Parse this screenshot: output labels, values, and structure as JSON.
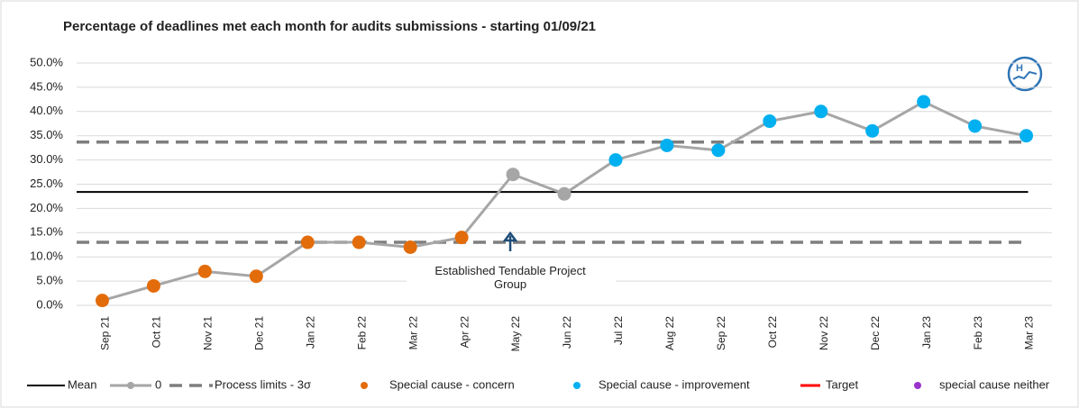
{
  "chart_data": {
    "type": "line",
    "title": "Percentage of deadlines met each month for audits submissions - starting 01/09/21",
    "categories": [
      "Sep 21",
      "Oct 21",
      "Nov 21",
      "Dec 21",
      "Jan 22",
      "Feb 22",
      "Mar 22",
      "Apr 22",
      "May 22",
      "Jun 22",
      "Jul 22",
      "Aug 22",
      "Sep 22",
      "Oct 22",
      "Nov 22",
      "Dec 22",
      "Jan 23",
      "Feb 23",
      "Mar 23"
    ],
    "series": [
      {
        "name": "0",
        "color": "#a6a6a6",
        "values": [
          1,
          4,
          7,
          6,
          13,
          13,
          12,
          14,
          27,
          23,
          30,
          33,
          32,
          38,
          40,
          36,
          42,
          37,
          35
        ]
      }
    ],
    "point_colors": [
      "#e36c0a",
      "#e36c0a",
      "#e36c0a",
      "#e36c0a",
      "#e36c0a",
      "#e36c0a",
      "#e36c0a",
      "#e36c0a",
      "#a6a6a6",
      "#a6a6a6",
      "#00b0f0",
      "#00b0f0",
      "#00b0f0",
      "#00b0f0",
      "#00b0f0",
      "#00b0f0",
      "#00b0f0",
      "#00b0f0",
      "#00b0f0"
    ],
    "mean": {
      "name": "Mean",
      "color": "#000000",
      "value": 23.4
    },
    "process_limits": {
      "name": "Process limits - 3σ",
      "color": "#7f7f7f",
      "values": [
        13,
        33.7
      ]
    },
    "special_causes": [
      {
        "name": "Special cause - concern",
        "color": "#e36c0a"
      },
      {
        "name": "Special cause  - improvement",
        "color": "#00b0f0"
      },
      {
        "name": "special cause neither",
        "color": "#9933cc"
      }
    ],
    "target": {
      "name": "Target",
      "color": "#ff0000"
    },
    "annotation": "Established Tendable Project Group",
    "ylim": [
      0,
      50
    ],
    "yticks": [
      {
        "value": 0,
        "label": "0.0%"
      },
      {
        "value": 5,
        "label": "5.0%"
      },
      {
        "value": 10,
        "label": "10.0%"
      },
      {
        "value": 15,
        "label": "15.0%"
      },
      {
        "value": 20,
        "label": "20.0%"
      },
      {
        "value": 25,
        "label": "25.0%"
      },
      {
        "value": 30,
        "label": "30.0%"
      },
      {
        "value": 35,
        "label": "35.0%"
      },
      {
        "value": 40,
        "label": "40.0%"
      },
      {
        "value": 45,
        "label": "45.0%"
      },
      {
        "value": 50,
        "label": "50.0%"
      }
    ],
    "grid": true
  }
}
